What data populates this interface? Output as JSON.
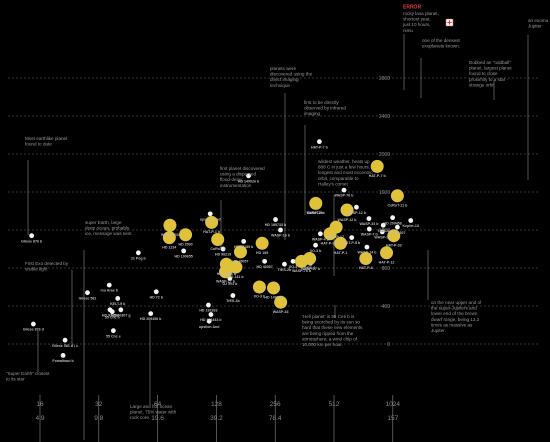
{
  "chart_data": {
    "type": "scatter",
    "x_scale": "log2",
    "xlim": [
      10,
      2050
    ],
    "ylim": [
      -50,
      2900
    ],
    "grid": true,
    "y_ticks": [
      "0",
      "400",
      "800",
      "1200",
      "1600",
      "2000",
      "2400",
      "2800"
    ],
    "y_tick_values": [
      0,
      400,
      800,
      1200,
      1600,
      2000,
      2400,
      2800
    ],
    "x_ticks": [
      "16",
      "32",
      "64",
      "128",
      "256",
      "512",
      "1024"
    ],
    "x_tick_values": [
      16,
      32,
      64,
      128,
      256,
      512,
      1024
    ],
    "x_ticks_secondary": [
      "4.9",
      "9.8",
      "19.6",
      "39.2",
      "78.4",
      "157"
    ],
    "x_ticks_secondary_values": [
      16,
      32,
      64,
      128,
      256,
      1024
    ],
    "series": [
      {
        "color": "#f4f4f4",
        "points": [
          {
            "label": "Gliese 876 b",
            "x": 14.5,
            "y": 1140
          },
          {
            "label": "Gliese 876 d",
            "x": 14.8,
            "y": 210
          },
          {
            "label": "Gliese 581 d / c",
            "x": 21.5,
            "y": 40
          },
          {
            "label": "Fomalhaut b",
            "x": 21.0,
            "y": -120
          },
          {
            "label": "Gliese 581",
            "x": 28.0,
            "y": 540
          },
          {
            "label": "mu Arae b",
            "x": 36.2,
            "y": 620
          },
          {
            "label": "55 Cnc e",
            "x": 38.0,
            "y": 140
          },
          {
            "label": "55 Cnc b",
            "x": 37.5,
            "y": 340
          },
          {
            "label": "HD 97658",
            "x": 36.5,
            "y": 360
          },
          {
            "label": "KELT-9 b",
            "x": 40.0,
            "y": 480
          },
          {
            "label": "HD 40307 g",
            "x": 41.5,
            "y": 360
          },
          {
            "label": "21 Peg b",
            "x": 51.0,
            "y": 960
          },
          {
            "label": "HD 209458 b",
            "x": 59.0,
            "y": 320
          },
          {
            "label": "HD 72 b",
            "x": 63.0,
            "y": 550
          },
          {
            "label": "HD 100655",
            "x": 87.0,
            "y": 980
          },
          {
            "label": "upsilon And",
            "x": 119.0,
            "y": 1370
          },
          {
            "label": "HD 192263",
            "x": 116.5,
            "y": 410
          },
          {
            "label": "upsilon And",
            "x": 117.5,
            "y": 240
          },
          {
            "label": "HD 168443 b",
            "x": 120.0,
            "y": 310
          },
          {
            "label": "HD 98219",
            "x": 138.5,
            "y": 1000
          },
          {
            "label": "GJ 504 b",
            "x": 150.0,
            "y": 690
          },
          {
            "label": "HD 28185 b",
            "x": 176.5,
            "y": 1080
          },
          {
            "label": "TrES-4b",
            "x": 155.5,
            "y": 510
          },
          {
            "label": "HD 149026 b",
            "x": 187.0,
            "y": 1770
          },
          {
            "label": "HD 40057",
            "x": 226.0,
            "y": 870
          },
          {
            "label": "TrES-2b",
            "x": 285.5,
            "y": 840
          },
          {
            "label": "HD 189733 b",
            "x": 257.0,
            "y": 1310
          },
          {
            "label": "XO-3",
            "x": 316.0,
            "y": 870
          },
          {
            "label": "WASP-18 b",
            "x": 272.5,
            "y": 1200
          },
          {
            "label": "WASP-17 b",
            "x": 388.0,
            "y": 850
          },
          {
            "label": "HAT-P-7 b",
            "x": 431.0,
            "y": 2130
          },
          {
            "label": "WASP-3 b",
            "x": 409.0,
            "y": 1440
          },
          {
            "label": "WASP-4 b",
            "x": 436.0,
            "y": 1160
          },
          {
            "label": "XO-3 b",
            "x": 412.0,
            "y": 1040
          },
          {
            "label": "WASP-76 b",
            "x": 576.0,
            "y": 1620
          },
          {
            "label": "WASP-12 b",
            "x": 667.0,
            "y": 1440
          },
          {
            "label": "HAT-P-8 b",
            "x": 631.0,
            "y": 1120
          },
          {
            "label": "WASP-33 b",
            "x": 773.0,
            "y": 1320
          },
          {
            "label": "WASP-14 b",
            "x": 755.0,
            "y": 1020
          },
          {
            "label": "WASP-7 b",
            "x": 776.0,
            "y": 1210
          },
          {
            "label": "TrES-3",
            "x": 915.0,
            "y": 1250
          },
          {
            "label": "WASP-33",
            "x": 905.0,
            "y": 1180
          },
          {
            "label": "HD 209458",
            "x": 1022.0,
            "y": 1330
          },
          {
            "label": "HD 40307",
            "x": 1081.0,
            "y": 1230
          },
          {
            "label": "Kepler-13",
            "x": 1265.0,
            "y": 1300
          }
        ]
      },
      {
        "color": "#e0c23a",
        "points": [
          {
            "label": "CoRoT-9 b",
            "x": 413.0,
            "y": 1480
          },
          {
            "label": "WASP-12 b",
            "x": 597.0,
            "y": 1410
          },
          {
            "label": "HAT-P-7 b",
            "x": 852.0,
            "y": 1870
          },
          {
            "label": "CoRoT-11 b",
            "x": 1081.0,
            "y": 1560
          },
          {
            "label": "HAT-P-32 b",
            "x": 489.0,
            "y": 1160
          },
          {
            "label": "WASP-17",
            "x": 525.0,
            "y": 1230
          },
          {
            "label": "HAT-P-1",
            "x": 553.0,
            "y": 1060
          },
          {
            "label": "HAT-P-8",
            "x": 745.0,
            "y": 900
          },
          {
            "label": "HAT-P-12",
            "x": 951.0,
            "y": 960
          },
          {
            "label": "HAT-P-33",
            "x": 1036.0,
            "y": 1140
          },
          {
            "label": "TrES-4",
            "x": 384.0,
            "y": 900
          },
          {
            "label": "WASP-78 b",
            "x": 349.0,
            "y": 870
          },
          {
            "label": "WASP-17 b",
            "x": 142.5,
            "y": 760
          },
          {
            "label": "HD 80606 b",
            "x": 144.0,
            "y": 840
          },
          {
            "label": "HD 131 b",
            "x": 161.0,
            "y": 810
          },
          {
            "label": "HD 40057",
            "x": 170.0,
            "y": 970
          },
          {
            "label": "WASP-33",
            "x": 273.0,
            "y": 440
          },
          {
            "label": "HD 149026",
            "x": 251.0,
            "y": 590
          },
          {
            "label": "HD 189",
            "x": 219.5,
            "y": 1060
          },
          {
            "label": "XO-3 b",
            "x": 212.5,
            "y": 600
          },
          {
            "label": "WASP-103",
            "x": 74.0,
            "y": 1250
          },
          {
            "label": "HD 1234",
            "x": 73.5,
            "y": 1120
          },
          {
            "label": "HAT-P-1 b",
            "x": 121.0,
            "y": 1280
          },
          {
            "label": "HD 2000",
            "x": 89.0,
            "y": 1150
          },
          {
            "label": "CoRoT-1",
            "x": 130.0,
            "y": 1100
          }
        ]
      }
    ],
    "annotations": [
      {
        "text": "Most earthlike planet found to date"
      },
      {
        "text": "First Exo detected by visible light"
      },
      {
        "text": "\"Super Earth\" closest to its star"
      },
      {
        "text": "super Earth, large deep ocean, probably ice, message was sent"
      },
      {
        "text": "Large and hot ocean planet, 75% water with rock core."
      },
      {
        "text": "first planet discovered using a dispersed flood-delay instrumentation"
      },
      {
        "text": "planets were discovered using the direct imaging technique"
      },
      {
        "text": "first to be directly observed by infrared imaging"
      },
      {
        "text": "wildest weather, heats up 888 C in just a few hours, longest and most eccentric orbit, comparable to Halley's comet"
      },
      {
        "text": "'Hell planet' is 95 Ceti b is being scorched by its sun so hard that these new elements are being ripped from the atmosphere; a wind chip of 10,000 km per hour."
      },
      {
        "text": "one of the densest exoplanets known."
      },
      {
        "text": "Dubbed an \"oddball\" planet, largest planet found to close proximity to a star - strange orbit"
      },
      {
        "text": "an exoma Jupiter"
      },
      {
        "text": "on the near upper and of the super-Jupiters and lower end of the brown dwarf range, being 13.2 times as massive as Jupiter."
      }
    ]
  },
  "error": {
    "title": "ERROR",
    "text": "rocky lava planet, shortest year, just 10 hours, nimu"
  }
}
